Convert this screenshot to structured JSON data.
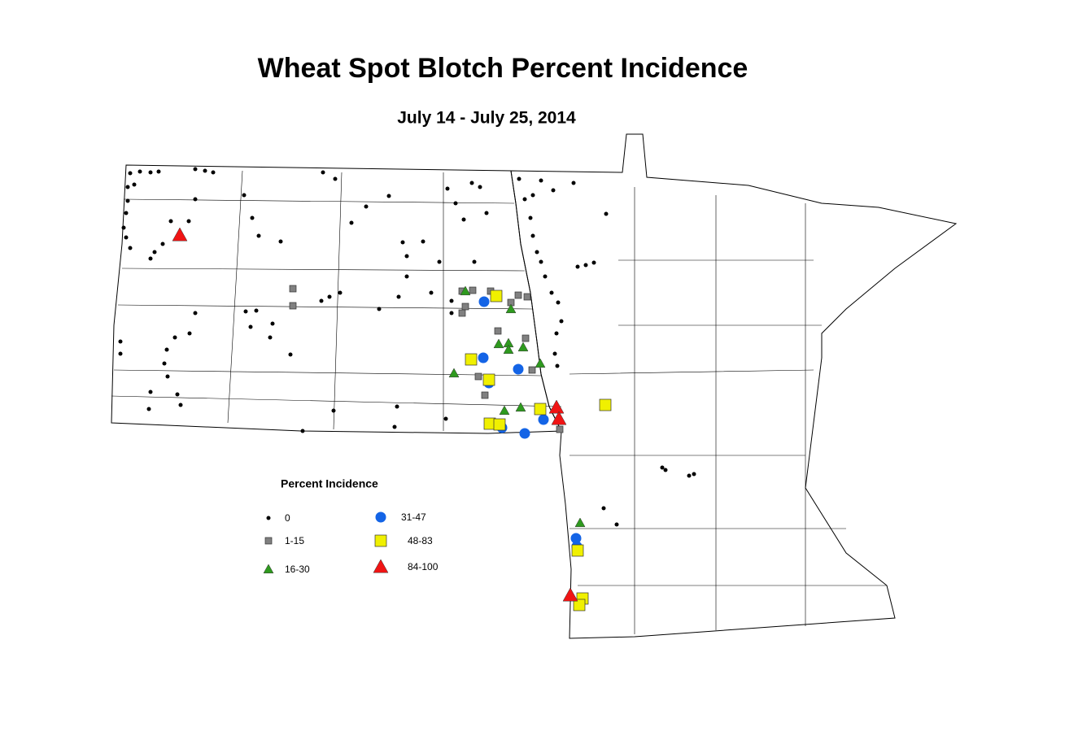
{
  "title": "Wheat Spot Blotch Percent Incidence",
  "subtitle": "July 14 - July 25, 2014",
  "legend": {
    "title": "Percent Incidence",
    "items": [
      {
        "label": "0",
        "shape": "dot",
        "color": "#000000"
      },
      {
        "label": "1-15",
        "shape": "square",
        "color": "#808080"
      },
      {
        "label": "16-30",
        "shape": "triangle",
        "color": "#2e9a1e"
      },
      {
        "label": "31-47",
        "shape": "circle",
        "color": "#1464e6"
      },
      {
        "label": "48-83",
        "shape": "square",
        "color": "#f0f000"
      },
      {
        "label": "84-100",
        "shape": "triangle",
        "color": "#f01414"
      }
    ]
  }
}
